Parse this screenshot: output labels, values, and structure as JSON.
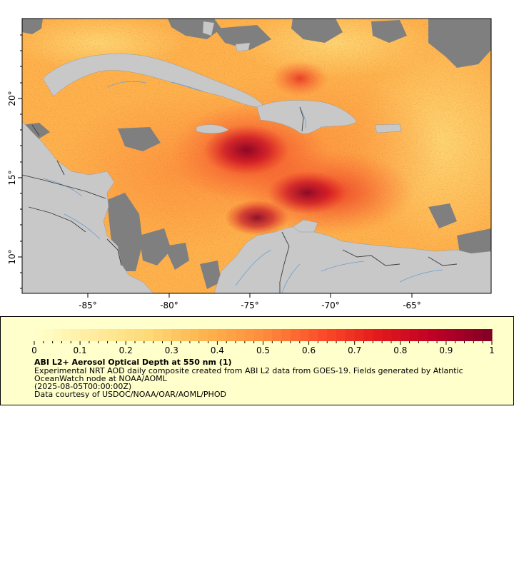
{
  "map": {
    "x_ticks": [
      "-85°",
      "-80°",
      "-75°",
      "-70°",
      "-65°"
    ],
    "y_ticks": [
      "20°",
      "15°",
      "10°"
    ],
    "colors": {
      "land": "#c8c8c8",
      "nodata": "#7f7f7f",
      "river": "#6f9fd0",
      "border": "#3c3c3c"
    }
  },
  "legend": {
    "ticks": [
      "0",
      "0.1",
      "0.2",
      "0.3",
      "0.4",
      "0.5",
      "0.6",
      "0.7",
      "0.8",
      "0.9",
      "1"
    ],
    "colormap": [
      "#ffffcc",
      "#ffeda0",
      "#fed976",
      "#feb24c",
      "#fd8d3c",
      "#fc4e2a",
      "#e31a1c",
      "#bd0026",
      "#800026"
    ],
    "title": "ABI L2+ Aerosol Optical Depth at 550 nm (1)",
    "line1": "Experimental NRT AOD daily composite created from ABI L2 data from GOES-19. Fields generated by Atlantic",
    "line2": "OceanWatch node at NOAA/AOML",
    "line3": "(2025-08-05T00:00:00Z)",
    "line4": "Data courtesy of USDOC/NOAA/OAR/AOML/PHOD"
  }
}
